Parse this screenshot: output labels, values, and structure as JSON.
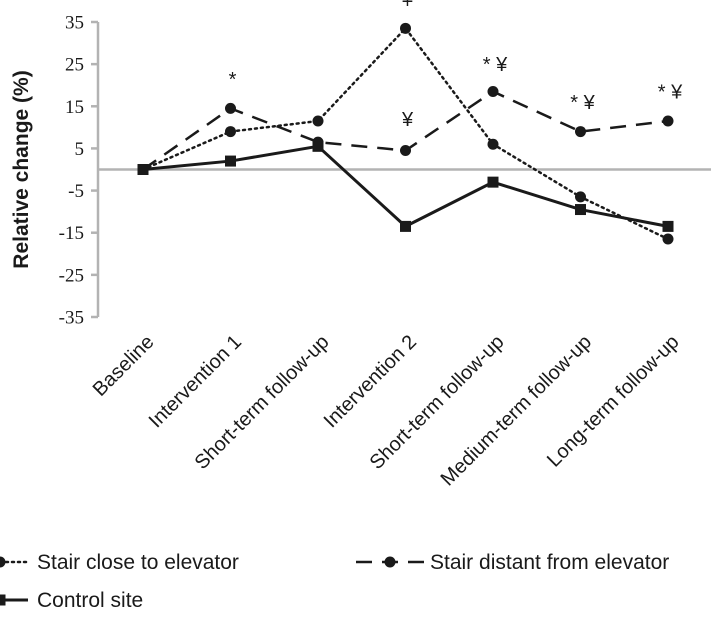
{
  "chart_data": {
    "type": "line",
    "title": "",
    "xlabel": "",
    "ylabel": "Relative change (%)",
    "ylim": [
      -35,
      35
    ],
    "yticks": [
      35,
      25,
      15,
      5,
      -5,
      -15,
      -25,
      -35
    ],
    "grid": false,
    "legend_position": "bottom",
    "categories": [
      "Baseline",
      "Intervention 1",
      "Short-term follow-up",
      "Intervention 2",
      "Short-term follow-up",
      "Medium-term follow-up",
      "Long-term follow-up"
    ],
    "series": [
      {
        "name": "Stair close to elevator",
        "line_style": "dotted",
        "marker": "circle",
        "color": "#1a1a1a",
        "values": [
          0,
          9,
          11.5,
          33.5,
          6,
          -6.5,
          -16.5
        ]
      },
      {
        "name": "Stair distant from elevator",
        "line_style": "dashed",
        "marker": "circle",
        "color": "#1a1a1a",
        "values": [
          0,
          14.5,
          6.5,
          4.5,
          18.5,
          9,
          11.5
        ]
      },
      {
        "name": "Control site",
        "line_style": "solid",
        "marker": "square",
        "color": "#1a1a1a",
        "values": [
          0,
          2,
          5.5,
          -13.5,
          -3,
          -9.5,
          -13.5
        ]
      }
    ],
    "annotations": [
      {
        "category_index": 1,
        "value": 21.5,
        "text": "*"
      },
      {
        "category_index": 3,
        "value": 40,
        "text": "+"
      },
      {
        "category_index": 3,
        "value": 12,
        "text": "¥"
      },
      {
        "category_index": 4,
        "value": 25,
        "text": "* ¥"
      },
      {
        "category_index": 5,
        "value": 16,
        "text": "* ¥"
      },
      {
        "category_index": 6,
        "value": 18.5,
        "text": "* ¥"
      }
    ]
  }
}
